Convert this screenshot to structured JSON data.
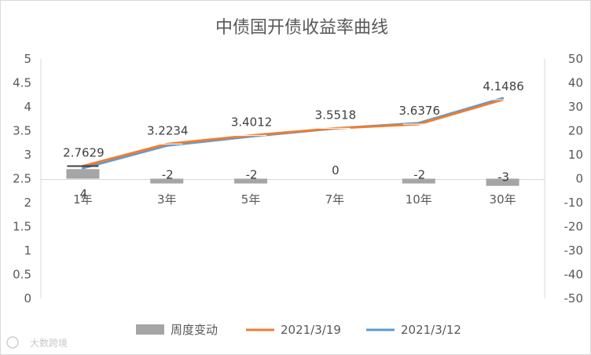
{
  "chart_data": {
    "type": "bar+line",
    "title": "中债国开债收益率曲线",
    "categories": [
      "1年",
      "3年",
      "5年",
      "7年",
      "10年",
      "30年"
    ],
    "bar_series": {
      "name": "周度变动",
      "values": [
        4,
        -2,
        -2,
        0,
        -2,
        -3
      ],
      "labels": [
        "4",
        "-2",
        "-2",
        "0",
        "-2",
        "-3"
      ],
      "axis": "right",
      "color": "#a5a5a5"
    },
    "line_series": [
      {
        "name": "2021/3/19",
        "values": [
          2.7629,
          3.2234,
          3.4012,
          3.5518,
          3.6376,
          4.1486
        ],
        "color": "#ed7d31",
        "axis": "left"
      },
      {
        "name": "2021/3/12",
        "values": [
          2.72,
          3.19,
          3.38,
          3.55,
          3.66,
          4.18
        ],
        "color": "#5b9bd5",
        "axis": "left"
      }
    ],
    "line_labels": [
      "2.7629",
      "3.2234",
      "3.4012",
      "3.5518",
      "3.6376",
      "4.1486"
    ],
    "y_left": {
      "min": 0,
      "max": 5,
      "ticks": [
        "0",
        "0.5",
        "1",
        "1.5",
        "2",
        "2.5",
        "3",
        "3.5",
        "4",
        "4.5",
        "5"
      ]
    },
    "y_right": {
      "min": -50,
      "max": 50,
      "ticks": [
        "-50",
        "-40",
        "-30",
        "-20",
        "-10",
        "0",
        "10",
        "20",
        "30",
        "40",
        "50"
      ]
    },
    "legend": [
      "周度变动",
      "2021/3/19",
      "2021/3/12"
    ],
    "legend_position": "bottom",
    "grid": false
  },
  "watermark": "大数跨境"
}
